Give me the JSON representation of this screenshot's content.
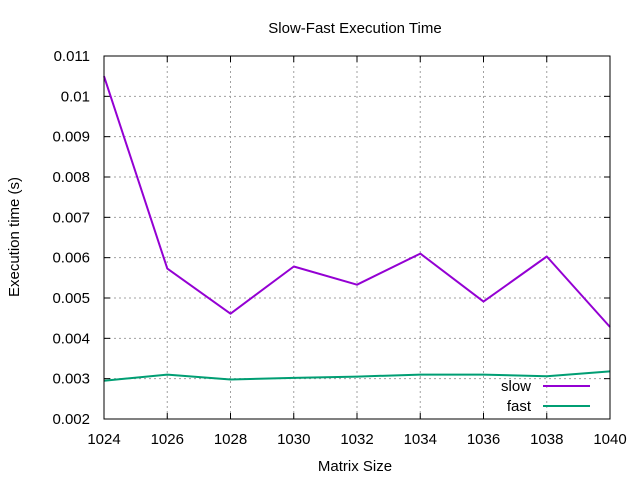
{
  "chart_data": {
    "type": "line",
    "title": "Slow-Fast Execution Time",
    "xlabel": "Matrix Size",
    "ylabel": "Execution time (s)",
    "xlim": [
      1024,
      1040
    ],
    "ylim": [
      0.002,
      0.011
    ],
    "x_ticks": [
      "1024",
      "1026",
      "1028",
      "1030",
      "1032",
      "1034",
      "1036",
      "1038",
      "1040"
    ],
    "y_ticks": [
      "0.002",
      "0.003",
      "0.004",
      "0.005",
      "0.006",
      "0.007",
      "0.008",
      "0.009",
      "0.01",
      "0.011"
    ],
    "grid": true,
    "legend_position": "bottom-right",
    "series": [
      {
        "name": "slow",
        "color": "#9400d3",
        "x": [
          1024,
          1026,
          1028,
          1030,
          1032,
          1034,
          1036,
          1038,
          1040
        ],
        "values": [
          0.0105,
          0.00573,
          0.00461,
          0.00578,
          0.00533,
          0.0061,
          0.00491,
          0.00603,
          0.00428
        ]
      },
      {
        "name": "fast",
        "color": "#009e73",
        "x": [
          1024,
          1026,
          1028,
          1030,
          1032,
          1034,
          1036,
          1038,
          1040
        ],
        "values": [
          0.00295,
          0.0031,
          0.00298,
          0.00302,
          0.00305,
          0.0031,
          0.0031,
          0.00306,
          0.00318
        ]
      }
    ]
  }
}
